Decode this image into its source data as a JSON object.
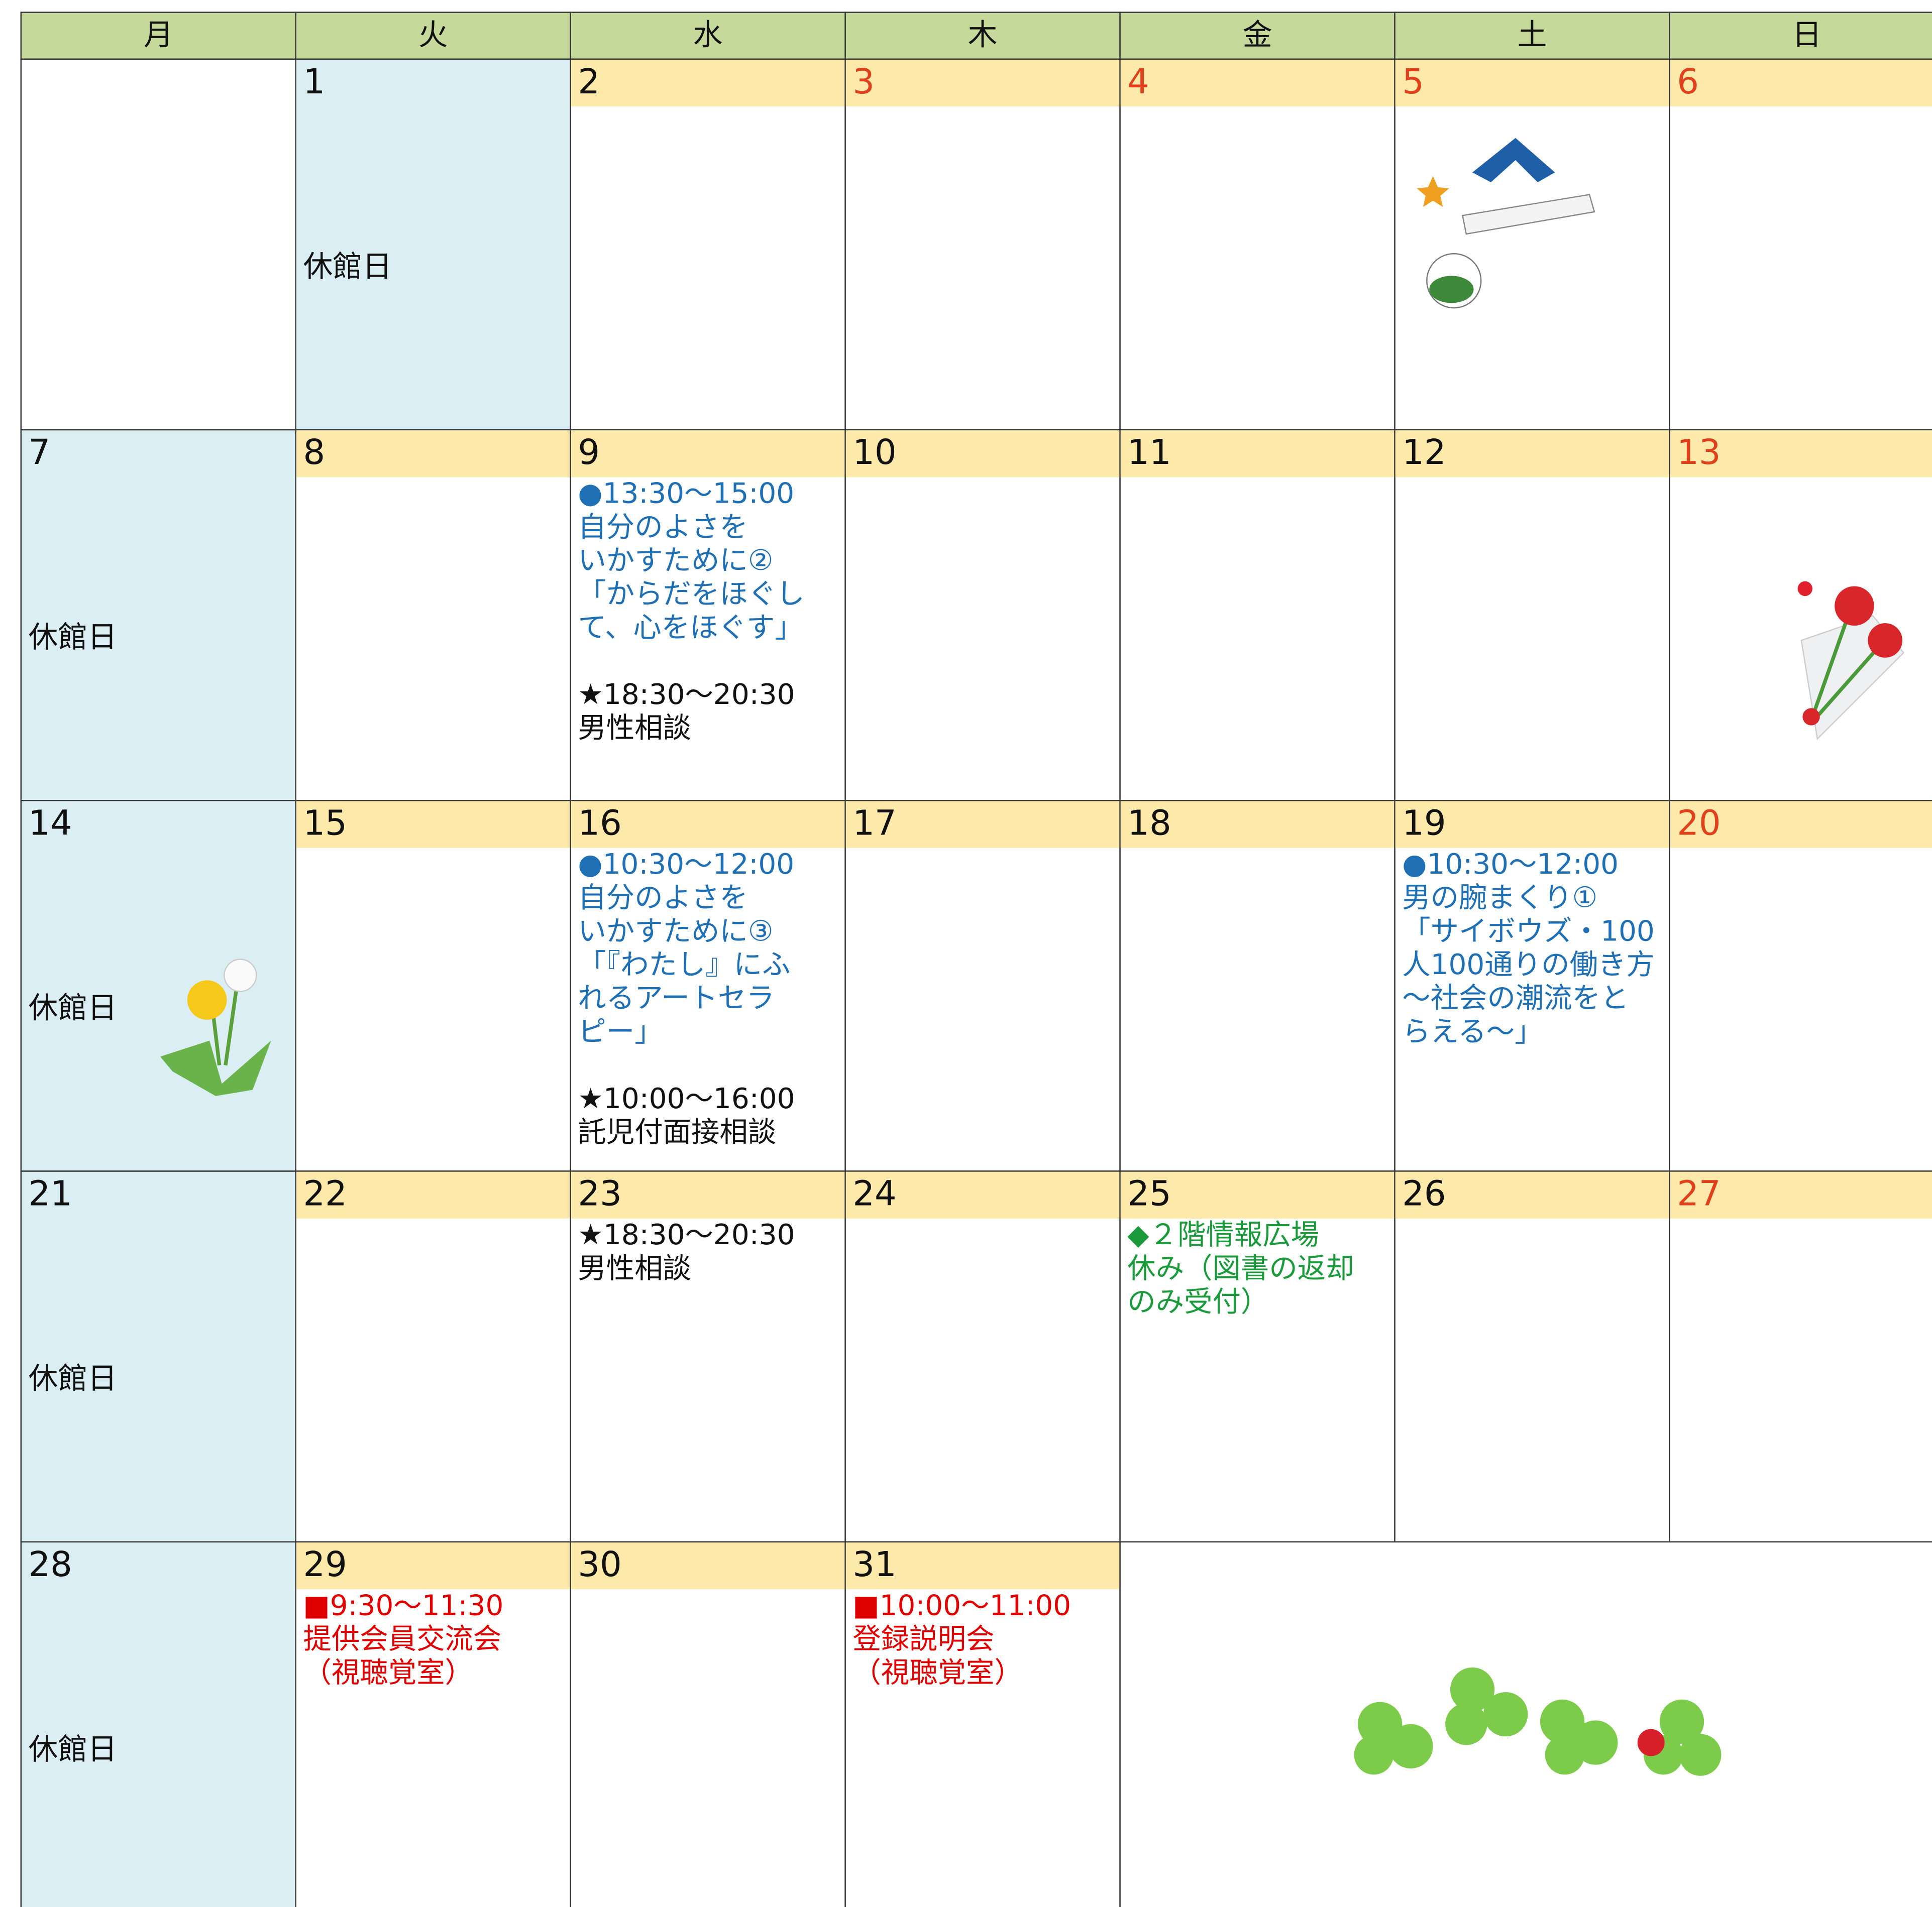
{
  "weekdays": [
    "月",
    "火",
    "水",
    "木",
    "金",
    "土",
    "日"
  ],
  "weeks": [
    [
      null,
      {
        "day": "1",
        "closed": true,
        "note": "休館日"
      },
      {
        "day": "2"
      },
      {
        "day": "3",
        "color": "#e0401c"
      },
      {
        "day": "4",
        "color": "#e0401c"
      },
      {
        "day": "5",
        "color": "#e0401c"
      },
      {
        "day": "6",
        "color": "#e0401c"
      }
    ],
    [
      {
        "day": "7",
        "closed": true,
        "note": "休館日"
      },
      {
        "day": "8"
      },
      {
        "day": "9",
        "events": [
          {
            "color": "#1f6fb5",
            "lines": [
              "●13:30～15:00",
              "自分のよさを",
              "いかすために②",
              "「からだをほぐし",
              "て、心をほぐす」"
            ]
          },
          {
            "color": "#111111",
            "lines": [
              "★18:30～20:30",
              "男性相談"
            ]
          }
        ]
      },
      {
        "day": "10"
      },
      {
        "day": "11"
      },
      {
        "day": "12"
      },
      {
        "day": "13",
        "color": "#e0401c"
      }
    ],
    [
      {
        "day": "14",
        "closed": true,
        "note": "休館日"
      },
      {
        "day": "15"
      },
      {
        "day": "16",
        "events": [
          {
            "color": "#1f6fb5",
            "lines": [
              "●10:30～12:00",
              "自分のよさを",
              "いかすために③",
              "「『わたし』にふ",
              "れるアートセラ",
              "ピー」"
            ]
          },
          {
            "color": "#111111",
            "lines": [
              "★10:00～16:00",
              "託児付面接相談"
            ]
          }
        ]
      },
      {
        "day": "17"
      },
      {
        "day": "18"
      },
      {
        "day": "19",
        "events": [
          {
            "color": "#1f6fb5",
            "lines": [
              "●10:30～12:00",
              "男の腕まくり①",
              "「サイボウズ・100",
              "人100通りの働き方",
              "～社会の潮流をと",
              "らえる～」"
            ]
          }
        ]
      },
      {
        "day": "20",
        "color": "#e0401c"
      }
    ],
    [
      {
        "day": "21",
        "closed": true,
        "note": "休館日"
      },
      {
        "day": "22"
      },
      {
        "day": "23",
        "events": [
          {
            "color": "#111111",
            "lines": [
              "★18:30～20:30",
              "男性相談"
            ]
          }
        ]
      },
      {
        "day": "24"
      },
      {
        "day": "25",
        "events": [
          {
            "color": "#1a9a3a",
            "lines": [
              "◆２階情報広場",
              "休み（図書の返却",
              "のみ受付）"
            ]
          }
        ]
      },
      {
        "day": "26"
      },
      {
        "day": "27",
        "color": "#e0401c"
      }
    ],
    [
      {
        "day": "28",
        "closed": true,
        "note": "休館日"
      },
      {
        "day": "29",
        "events": [
          {
            "color": "#e00000",
            "lines": [
              "■9:30～11:30",
              "提供会員交流会",
              "（視聴覚室）"
            ]
          }
        ]
      },
      {
        "day": "30"
      },
      {
        "day": "31",
        "events": [
          {
            "color": "#e00000",
            "lines": [
              "■10:00～11:00",
              "登録説明会",
              "（視聴覚室）"
            ]
          }
        ]
      }
    ]
  ]
}
